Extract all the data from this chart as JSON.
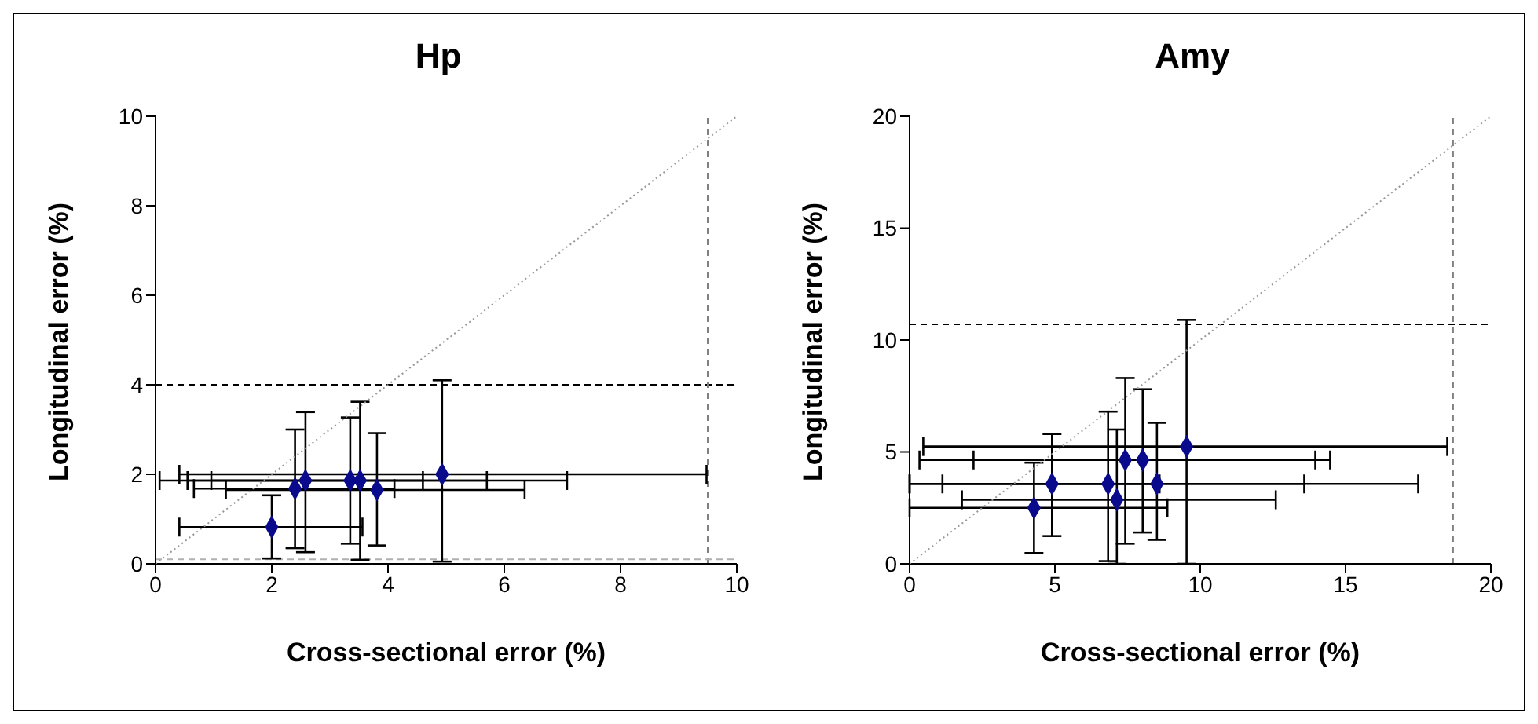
{
  "chart_data": [
    {
      "type": "scatter",
      "title": "Hp",
      "xlabel": "Cross-sectional error (%)",
      "ylabel": "Longitudinal error (%)",
      "xlim": [
        0,
        10
      ],
      "xticks": [
        0,
        2,
        4,
        6,
        8,
        10
      ],
      "ylim": [
        0,
        10
      ],
      "yticks": [
        0,
        2,
        4,
        6,
        8,
        10
      ],
      "grid": false,
      "legend": false,
      "marker": "diamond",
      "series": [
        {
          "color": "#0a0a8c",
          "x": [
            2.0,
            2.4,
            2.58,
            3.35,
            3.52,
            3.81,
            4.93
          ],
          "values": [
            0.82,
            1.68,
            1.86,
            1.86,
            1.86,
            1.65,
            2.0
          ],
          "errors": [
            [
              0.12,
              1.53
            ],
            [
              0.35,
              3.0
            ],
            [
              0.26,
              3.39
            ],
            [
              0.45,
              3.27
            ],
            [
              0.09,
              3.62
            ],
            [
              0.41,
              2.92
            ],
            [
              0.05,
              4.1
            ]
          ],
          "xerrors": [
            [
              0.41,
              3.56
            ],
            [
              0.66,
              4.11
            ],
            [
              0.07,
              7.08
            ],
            [
              0.55,
              5.7
            ],
            [
              0.96,
              4.6
            ],
            [
              1.21,
              6.35
            ],
            [
              0.41,
              9.48
            ]
          ]
        },
        {
          "type": "line",
          "color": "#999999",
          "line_style": "dotted",
          "marker": "none",
          "x": [
            0,
            10
          ],
          "values": [
            0,
            10
          ]
        }
      ],
      "ref_lines": [
        {
          "axis": "y",
          "value": 4,
          "color": "#000000",
          "line_style": "dashed"
        },
        {
          "axis": "x",
          "value": 9.5,
          "color": "#808080",
          "line_style": "dashed"
        },
        {
          "axis": "y",
          "value": 0.1,
          "color": "#b0b0b0",
          "line_style": "dashed"
        }
      ]
    },
    {
      "type": "scatter",
      "title": "Amy",
      "xlabel": "Cross-sectional error (%)",
      "ylabel": "Longitudinal error (%)",
      "xlim": [
        0,
        20
      ],
      "xticks": [
        0,
        5,
        10,
        15,
        20
      ],
      "ylim": [
        0,
        20
      ],
      "yticks": [
        0,
        5,
        10,
        15,
        20
      ],
      "grid": false,
      "legend": false,
      "marker": "diamond",
      "series": [
        {
          "color": "#0a0a8c",
          "x": [
            4.28,
            4.9,
            6.83,
            7.13,
            7.42,
            8.02,
            8.51,
            9.53
          ],
          "values": [
            2.5,
            3.57,
            3.57,
            2.86,
            4.64,
            4.64,
            3.57,
            5.24
          ],
          "errors": [
            [
              0.48,
              4.52
            ],
            [
              1.24,
              5.8
            ],
            [
              0.12,
              6.8
            ],
            [
              0,
              6.0
            ],
            [
              0.9,
              8.3
            ],
            [
              1.4,
              7.8
            ],
            [
              1.07,
              6.3
            ],
            [
              0,
              10.9
            ]
          ],
          "xerrors": [
            [
              0,
              8.87
            ],
            [
              0,
              8.6
            ],
            [
              1.13,
              13.58
            ],
            [
              1.8,
              12.6
            ],
            [
              0.34,
              14.47
            ],
            [
              2.2,
              13.96
            ],
            [
              0,
              17.5
            ],
            [
              0.47,
              18.5
            ]
          ]
        },
        {
          "type": "line",
          "color": "#999999",
          "line_style": "dotted",
          "marker": "none",
          "x": [
            0,
            20
          ],
          "values": [
            0,
            20
          ]
        }
      ],
      "ref_lines": [
        {
          "axis": "y",
          "value": 10.7,
          "color": "#000000",
          "line_style": "dashed"
        },
        {
          "axis": "x",
          "value": 18.7,
          "color": "#808080",
          "line_style": "dashed"
        }
      ]
    }
  ]
}
